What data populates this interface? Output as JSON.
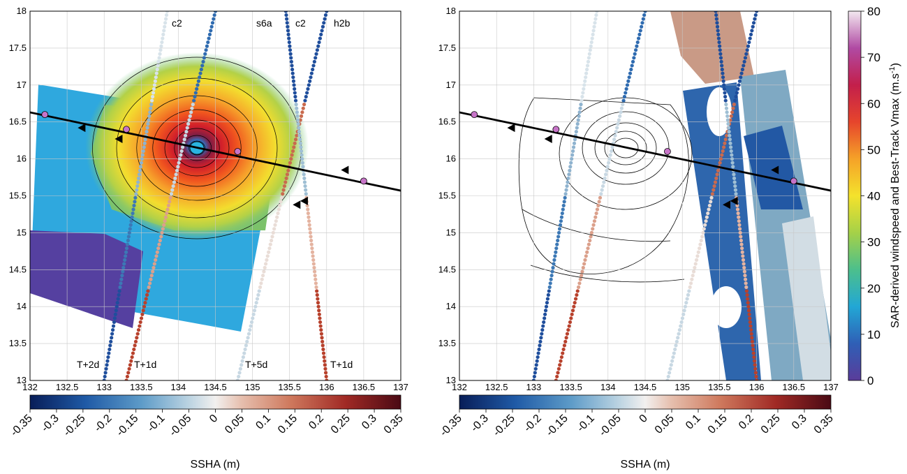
{
  "chart_data": [
    {
      "type": "scatter",
      "panel": "left",
      "x_range": [
        132,
        137
      ],
      "y_range": [
        13,
        18
      ],
      "x_ticks": [
        "132",
        "132.5",
        "133",
        "133.5",
        "134",
        "134.5",
        "135",
        "135.5",
        "136",
        "136.5",
        "137"
      ],
      "y_ticks": [
        "13",
        "13.5",
        "14",
        "14.5",
        "15",
        "15.5",
        "16",
        "16.5",
        "17",
        "17.5",
        "18"
      ],
      "grid": true,
      "background_field": "SAR-derived windspeed (filled contours)",
      "track": {
        "points": [
          [
            132.0,
            16.63
          ],
          [
            137.0,
            15.57
          ]
        ],
        "markers": [
          [
            132.2,
            16.6
          ],
          [
            133.3,
            16.4
          ],
          [
            134.8,
            16.1
          ],
          [
            136.5,
            15.7
          ]
        ],
        "triangles": [
          [
            132.7,
            16.42
          ],
          [
            133.2,
            16.27
          ],
          [
            135.6,
            15.38
          ],
          [
            135.7,
            15.43
          ],
          [
            136.25,
            15.85
          ]
        ]
      },
      "altimeter_tracks": [
        {
          "label": "c2",
          "time_label": "T+2d",
          "from": [
            133.0,
            13.0
          ],
          "to": [
            133.85,
            18.0
          ]
        },
        {
          "label": "s6a",
          "time_label": "T+1d",
          "from": [
            133.3,
            13.0
          ],
          "to": [
            134.5,
            18.0
          ]
        },
        {
          "label": "c2",
          "time_label": "T+5d",
          "from": [
            134.8,
            13.0
          ],
          "to": [
            136.0,
            18.0
          ]
        },
        {
          "label": "h2b",
          "time_label": "T+1d",
          "from": [
            136.0,
            13.0
          ],
          "to": [
            135.45,
            18.0
          ]
        }
      ],
      "labels": {
        "track_top": [
          "c2",
          "s6a",
          "c2",
          "h2b"
        ],
        "track_bottom": [
          "T+2d",
          "T+1d",
          "T+5d",
          "T+1d"
        ]
      }
    },
    {
      "type": "scatter",
      "panel": "right",
      "x_range": [
        132,
        137
      ],
      "y_range": [
        13,
        18
      ],
      "x_ticks": [
        "132",
        "132.5",
        "133",
        "133.5",
        "134",
        "134.5",
        "135",
        "135.5",
        "136",
        "136.5",
        "137"
      ],
      "y_ticks": [
        "13",
        "13.5",
        "14",
        "14.5",
        "15",
        "15.5",
        "16",
        "16.5",
        "17",
        "17.5",
        "18"
      ],
      "grid": true,
      "background_field": "SSHA swath (filled) with windspeed contour lines"
    }
  ],
  "colorbar_ssha": {
    "label": "SSHA (m)",
    "ticks": [
      "-0.35",
      "-0.3",
      "-0.25",
      "-0.2",
      "-0.15",
      "-0.1",
      "-0.05",
      "0",
      "0.05",
      "0.1",
      "0.15",
      "0.2",
      "0.25",
      "0.3",
      "0.35"
    ],
    "range": [
      -0.35,
      0.35
    ]
  },
  "colorbar_wind": {
    "label_main": "SAR-derived windspeed and Best-Track Vmax (m.s",
    "label_sup": "-1",
    "label_end": ")",
    "ticks": [
      "0",
      "10",
      "20",
      "30",
      "40",
      "50",
      "60",
      "70",
      "80"
    ],
    "range": [
      0,
      80
    ]
  },
  "colors": {
    "track_line": "#000000",
    "marker_fill": "#c774c8",
    "ssha_neg": "#1f4e9c",
    "ssha_pos": "#b8412c"
  }
}
